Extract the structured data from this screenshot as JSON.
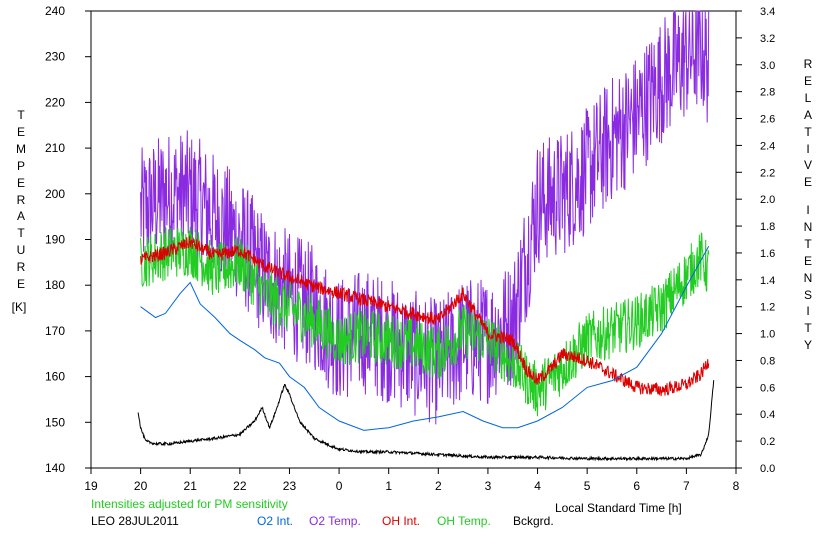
{
  "chart_data": {
    "type": "line",
    "xlabel": "Local Standard Time [h]",
    "left_axis_label_letters": [
      "T",
      "E",
      "M",
      "P",
      "E",
      "R",
      "A",
      "T",
      "U",
      "R",
      "E"
    ],
    "left_axis_unit": "[K]",
    "right_axis_label_word1": [
      "R",
      "E",
      "L",
      "A",
      "T",
      "I",
      "V",
      "E"
    ],
    "right_axis_label_word2": [
      "I",
      "N",
      "T",
      "E",
      "N",
      "S",
      "I",
      "T",
      "Y"
    ],
    "x_ticks": [
      "19",
      "20",
      "21",
      "22",
      "23",
      "0",
      "1",
      "2",
      "3",
      "4",
      "5",
      "6",
      "7",
      "8"
    ],
    "xlim": [
      19,
      32
    ],
    "ylim_left": [
      140,
      240
    ],
    "ylim_right": [
      0.0,
      3.4
    ],
    "left_ticks": [
      "140",
      "150",
      "160",
      "170",
      "180",
      "190",
      "200",
      "210",
      "220",
      "230",
      "240"
    ],
    "right_ticks": [
      "0.0",
      "0.2",
      "0.4",
      "0.6",
      "0.8",
      "1.0",
      "1.2",
      "1.4",
      "1.6",
      "1.8",
      "2.0",
      "2.2",
      "2.4",
      "2.6",
      "2.8",
      "3.0",
      "3.2",
      "3.4"
    ],
    "grid": false,
    "note": "Intensities adjusted for PM sensitivity",
    "station": "LEO 28JUL2011",
    "series": [
      {
        "name": "O2 Int.",
        "axis": "right",
        "color": "#0066dd",
        "x": [
          20.0,
          20.3,
          20.5,
          20.8,
          21.0,
          21.2,
          21.5,
          21.8,
          22.0,
          22.3,
          22.5,
          22.8,
          23.0,
          23.3,
          23.6,
          24.0,
          24.5,
          25.0,
          25.5,
          26.0,
          26.5,
          26.9,
          27.3,
          27.6,
          28.0,
          28.5,
          29.0,
          29.5,
          30.0,
          30.5,
          31.0,
          31.3,
          31.45
        ],
        "y": [
          1.2,
          1.12,
          1.15,
          1.3,
          1.38,
          1.22,
          1.12,
          1.0,
          0.95,
          0.88,
          0.82,
          0.78,
          0.68,
          0.6,
          0.45,
          0.35,
          0.28,
          0.3,
          0.35,
          0.38,
          0.42,
          0.35,
          0.3,
          0.3,
          0.35,
          0.45,
          0.6,
          0.65,
          0.75,
          1.0,
          1.35,
          1.55,
          1.65
        ]
      },
      {
        "name": "O2 Temp.",
        "axis": "left",
        "color": "#8a2be2",
        "x": [
          20.0,
          20.5,
          21.0,
          21.5,
          22.0,
          22.5,
          23.0,
          23.5,
          24.0,
          24.5,
          25.0,
          25.5,
          26.0,
          26.5,
          27.0,
          27.5,
          28.0,
          28.5,
          29.0,
          29.5,
          30.0,
          30.5,
          31.0,
          31.3,
          31.45
        ],
        "y": [
          196,
          200,
          200,
          195,
          190,
          182,
          178,
          175,
          168,
          170,
          168,
          165,
          163,
          168,
          168,
          172,
          198,
          200,
          205,
          212,
          217,
          225,
          230,
          232,
          228
        ],
        "noise": 14
      },
      {
        "name": "OH Int.",
        "axis": "right",
        "color": "#dd0000",
        "x": [
          20.0,
          20.5,
          21.0,
          21.5,
          22.0,
          22.5,
          23.0,
          23.5,
          24.0,
          24.5,
          25.0,
          25.5,
          26.0,
          26.5,
          27.0,
          27.5,
          27.8,
          28.0,
          28.3,
          28.5,
          29.0,
          29.5,
          30.0,
          30.5,
          31.0,
          31.3,
          31.45
        ],
        "y": [
          1.55,
          1.6,
          1.68,
          1.58,
          1.62,
          1.5,
          1.42,
          1.35,
          1.3,
          1.25,
          1.2,
          1.15,
          1.1,
          1.3,
          1.0,
          0.95,
          0.72,
          0.65,
          0.75,
          0.85,
          0.8,
          0.7,
          0.6,
          0.58,
          0.62,
          0.7,
          0.8
        ],
        "noise": 0.05
      },
      {
        "name": "OH Temp.",
        "axis": "left",
        "color": "#22cc22",
        "x": [
          20.0,
          20.5,
          21.0,
          21.5,
          22.0,
          22.5,
          23.0,
          23.5,
          24.0,
          24.5,
          25.0,
          25.5,
          26.0,
          26.5,
          27.0,
          27.5,
          28.0,
          28.5,
          29.0,
          29.5,
          30.0,
          30.5,
          31.0,
          31.3,
          31.45
        ],
        "y": [
          185,
          187,
          188,
          183,
          185,
          178,
          175,
          172,
          168,
          169,
          168,
          167,
          165,
          170,
          168,
          163,
          157,
          162,
          168,
          170,
          172,
          175,
          182,
          186,
          183
        ],
        "noise": 6
      },
      {
        "name": "Bckgrd.",
        "axis": "right",
        "color": "#000000",
        "x": [
          19.95,
          20.0,
          20.05,
          20.1,
          20.3,
          20.6,
          21.0,
          21.5,
          22.0,
          22.3,
          22.45,
          22.6,
          22.75,
          22.9,
          23.0,
          23.2,
          23.5,
          23.8,
          24.0,
          24.5,
          25.0,
          26.0,
          27.0,
          28.0,
          29.0,
          30.0,
          31.0,
          31.3,
          31.45,
          31.55
        ],
        "y": [
          0.42,
          0.3,
          0.25,
          0.2,
          0.18,
          0.18,
          0.2,
          0.22,
          0.25,
          0.35,
          0.45,
          0.3,
          0.45,
          0.62,
          0.55,
          0.35,
          0.22,
          0.17,
          0.14,
          0.12,
          0.12,
          0.1,
          0.08,
          0.08,
          0.07,
          0.07,
          0.07,
          0.1,
          0.25,
          0.65
        ],
        "noise": 0.01
      }
    ]
  }
}
